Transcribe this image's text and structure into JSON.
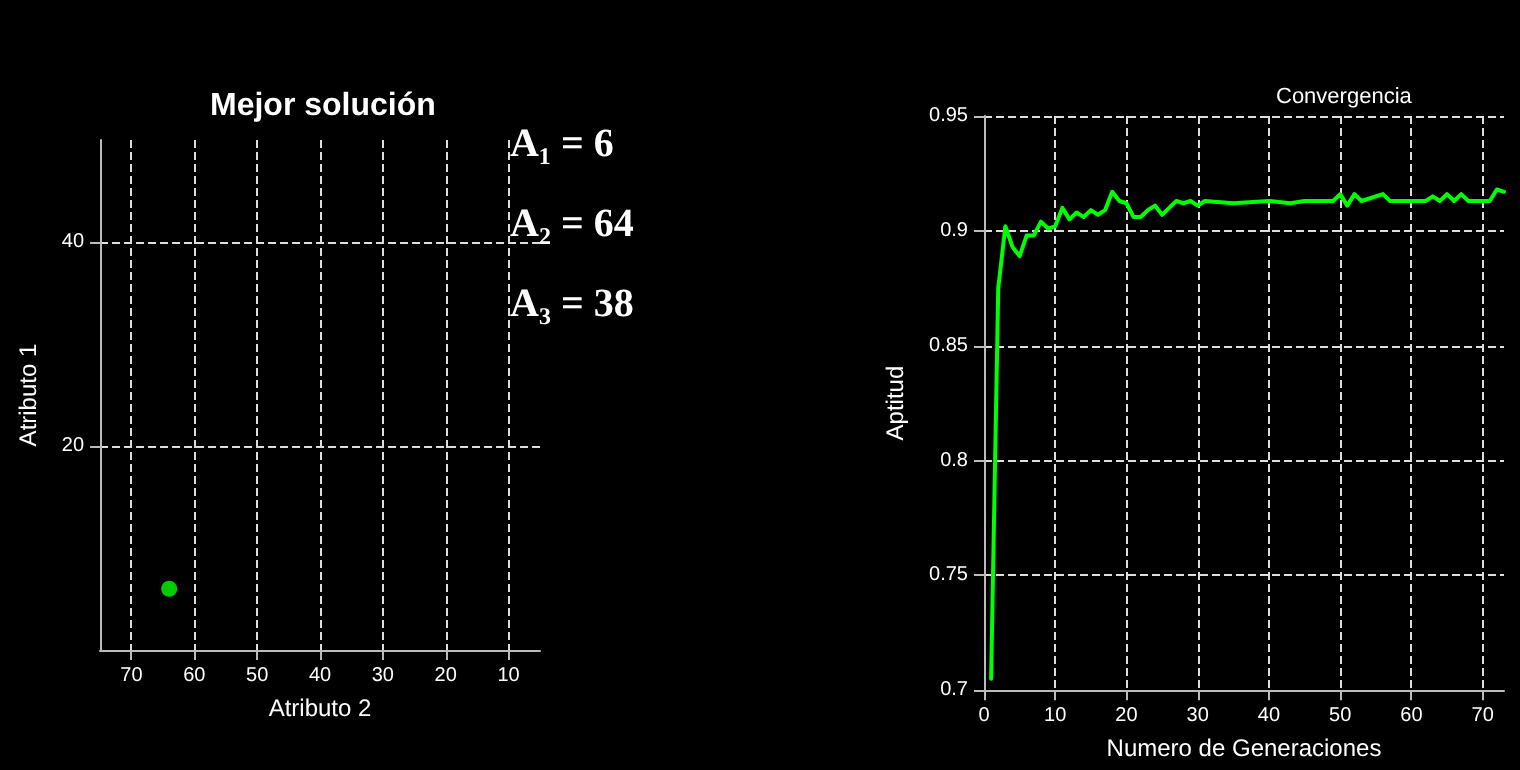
{
  "chart_data": [
    {
      "type": "scatter",
      "title": "Mejor solución",
      "xlabel": "Atributo 2",
      "ylabel": "Atributo 1",
      "x": [
        64
      ],
      "values": [
        6
      ],
      "color": "#00ff00",
      "marker": "circle",
      "xlim": [
        75,
        5
      ],
      "xticks": [
        70,
        60,
        50,
        40,
        30,
        20,
        10
      ],
      "ylim": [
        0,
        50
      ],
      "yticks": [
        20,
        40
      ],
      "grid": true,
      "annotations": [
        "A₁ = 6",
        "A₂ = 64",
        "A₃ = 38"
      ]
    },
    {
      "type": "line",
      "title": "Convergencia",
      "xlabel": "Numero de Generaciones",
      "ylabel": "Aptitud",
      "color": "#00ff00",
      "marker": "none",
      "line_style": "solid",
      "grid": true,
      "x": [
        1,
        2,
        3,
        4,
        5,
        6,
        7,
        8,
        9,
        10,
        11,
        12,
        13,
        14,
        15,
        16,
        17,
        18,
        19,
        20,
        21,
        22,
        23,
        24,
        25,
        26,
        27,
        28,
        29,
        30,
        31,
        35,
        40,
        43,
        45,
        49,
        50,
        51,
        52,
        53,
        56,
        57,
        62,
        63,
        64,
        65,
        66,
        67,
        68,
        71,
        72,
        73
      ],
      "values": [
        0.705,
        0.875,
        0.902,
        0.893,
        0.889,
        0.898,
        0.898,
        0.904,
        0.901,
        0.902,
        0.91,
        0.905,
        0.908,
        0.906,
        0.909,
        0.907,
        0.909,
        0.917,
        0.913,
        0.912,
        0.906,
        0.906,
        0.909,
        0.911,
        0.907,
        0.91,
        0.913,
        0.912,
        0.913,
        0.911,
        0.913,
        0.912,
        0.913,
        0.912,
        0.913,
        0.913,
        0.916,
        0.911,
        0.916,
        0.913,
        0.916,
        0.913,
        0.913,
        0.915,
        0.913,
        0.916,
        0.913,
        0.916,
        0.913,
        0.913,
        0.918,
        0.917
      ],
      "xlim": [
        0,
        73
      ],
      "xticks": [
        0,
        10,
        20,
        30,
        40,
        50,
        60,
        70
      ],
      "ylim": [
        0.7,
        0.95
      ],
      "yticks": [
        0.7,
        0.75,
        0.8,
        0.85,
        0.9,
        0.95
      ]
    }
  ]
}
